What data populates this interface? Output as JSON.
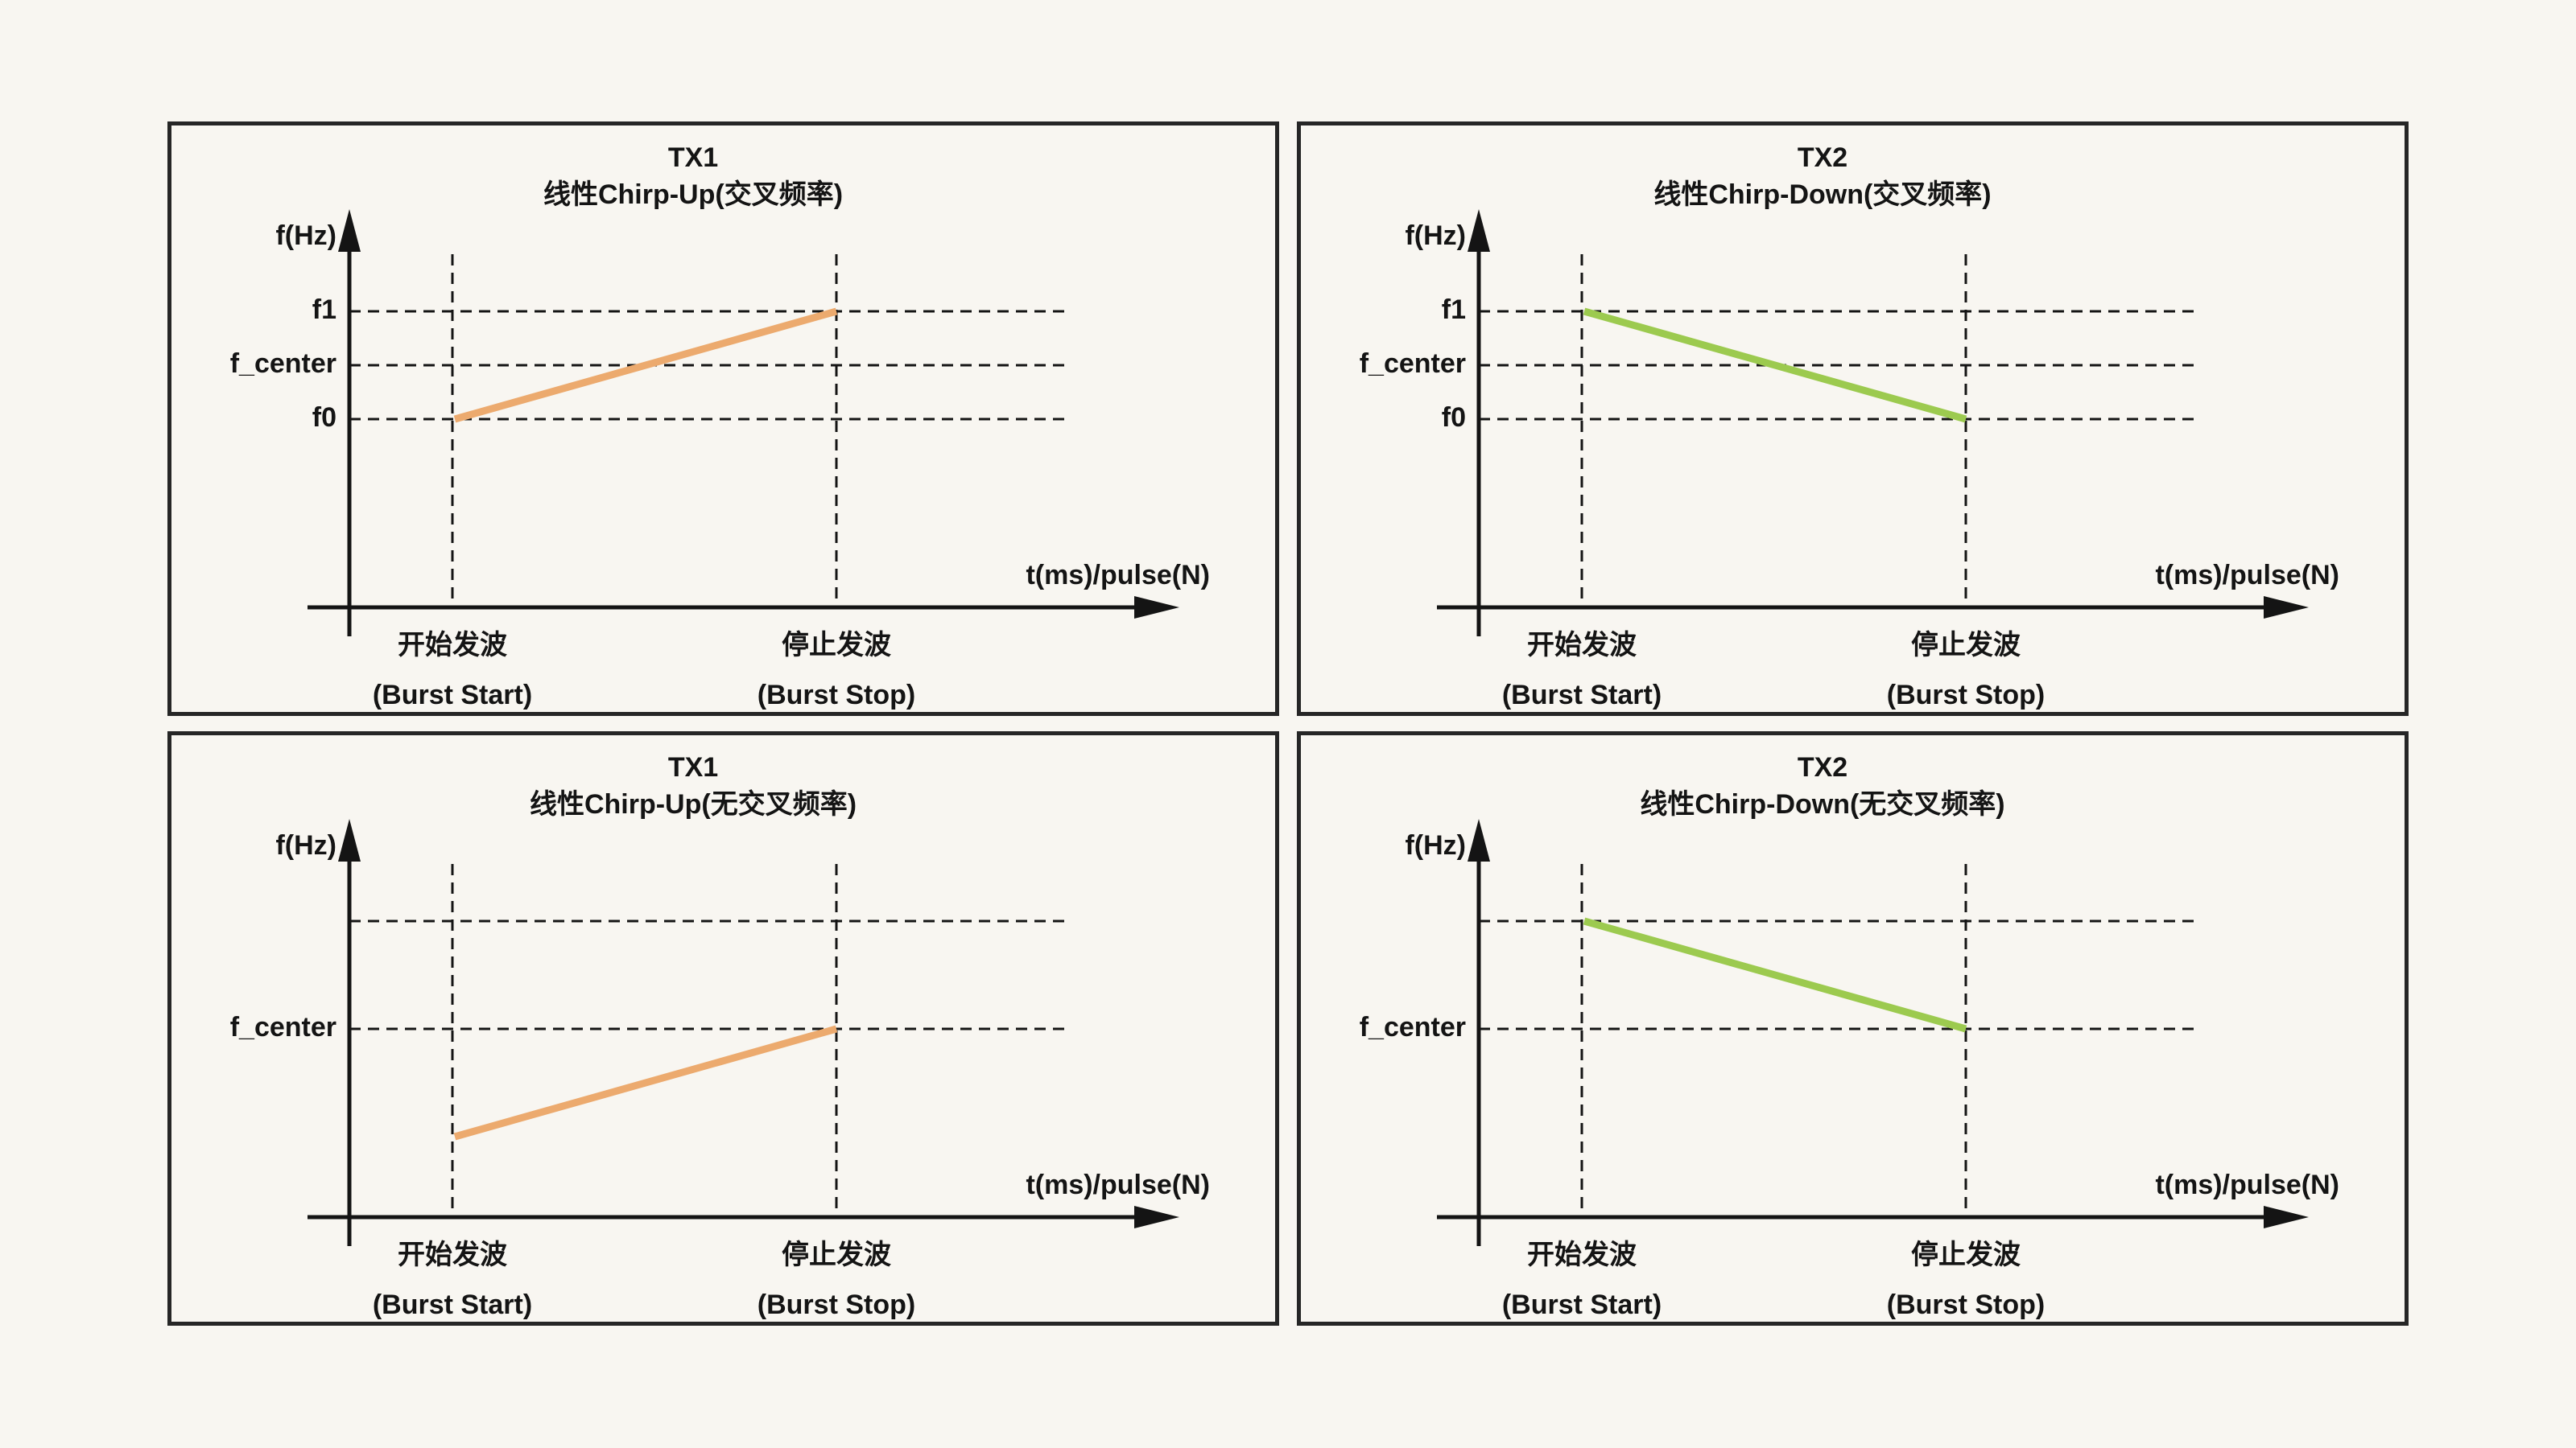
{
  "page": {
    "background": "#F8F6F1",
    "panel_border": "#262626"
  },
  "colors": {
    "tx1_orange": "#ECAA6E",
    "tx2_green": "#9CCA4F",
    "ink": "#141414"
  },
  "panels": [
    {
      "id": "tx1-chirp-up-crossed",
      "title_line1": "TX1",
      "title_line2": "线性Chirp-Up(交叉频率)",
      "accent": "#ECAA6E",
      "y_axis_label": "f(Hz)",
      "x_axis_label": "t(ms)/pulse(N)",
      "burst_start_zh": "开始发波",
      "burst_start_en": "(Burst Start)",
      "burst_stop_zh": "停止发波",
      "burst_stop_en": "(Burst Stop)",
      "hlines": [
        {
          "label": "f1",
          "level": 4
        },
        {
          "label": "f_center",
          "level": 3
        },
        {
          "label": "f0",
          "level": 2
        }
      ],
      "chirp": {
        "from_level": 2,
        "to_level": 4
      }
    },
    {
      "id": "tx2-chirp-down-crossed",
      "title_line1": "TX2",
      "title_line2": "线性Chirp-Down(交叉频率)",
      "accent": "#9CCA4F",
      "y_axis_label": "f(Hz)",
      "x_axis_label": "t(ms)/pulse(N)",
      "burst_start_zh": "开始发波",
      "burst_start_en": "(Burst Start)",
      "burst_stop_zh": "停止发波",
      "burst_stop_en": "(Burst Stop)",
      "hlines": [
        {
          "label": "f1",
          "level": 4
        },
        {
          "label": "f_center",
          "level": 3
        },
        {
          "label": "f0",
          "level": 2
        }
      ],
      "chirp": {
        "from_level": 4,
        "to_level": 2
      }
    },
    {
      "id": "tx1-chirp-up-noncrossed",
      "title_line1": "TX1",
      "title_line2": "线性Chirp-Up(无交叉频率)",
      "accent": "#ECAA6E",
      "y_axis_label": "f(Hz)",
      "x_axis_label": "t(ms)/pulse(N)",
      "burst_start_zh": "开始发波",
      "burst_start_en": "(Burst Start)",
      "burst_stop_zh": "停止发波",
      "burst_stop_en": "(Burst Stop)",
      "hlines": [
        {
          "label": "",
          "level": 4
        },
        {
          "label": "f_center",
          "level": 2
        }
      ],
      "chirp": {
        "from_level": 0,
        "to_level": 2
      }
    },
    {
      "id": "tx2-chirp-down-noncrossed",
      "title_line1": "TX2",
      "title_line2": "线性Chirp-Down(无交叉频率)",
      "accent": "#9CCA4F",
      "y_axis_label": "f(Hz)",
      "x_axis_label": "t(ms)/pulse(N)",
      "burst_start_zh": "开始发波",
      "burst_start_en": "(Burst Start)",
      "burst_stop_zh": "停止发波",
      "burst_stop_en": "(Burst Stop)",
      "hlines": [
        {
          "label": "",
          "level": 4
        },
        {
          "label": "f_center",
          "level": 2
        }
      ],
      "chirp": {
        "from_level": 4,
        "to_level": 2
      }
    }
  ],
  "chart_data": [
    {
      "type": "line",
      "title": "TX1 线性Chirp-Up(交叉频率)",
      "xlabel": "t(ms)/pulse(N)",
      "ylabel": "f(Hz)",
      "x_categories": [
        "开始发波 (Burst Start)",
        "停止发波 (Burst Stop)"
      ],
      "y_gridlines": [
        "f1",
        "f_center",
        "f0"
      ],
      "grid": "dashed",
      "legend": "none",
      "series": [
        {
          "name": "TX1",
          "color": "#ECAA6E",
          "points": [
            {
              "x": "Burst Start",
              "y": "f0"
            },
            {
              "x": "Burst Stop",
              "y": "f1"
            }
          ]
        }
      ]
    },
    {
      "type": "line",
      "title": "TX2 线性Chirp-Down(交叉频率)",
      "xlabel": "t(ms)/pulse(N)",
      "ylabel": "f(Hz)",
      "x_categories": [
        "开始发波 (Burst Start)",
        "停止发波 (Burst Stop)"
      ],
      "y_gridlines": [
        "f1",
        "f_center",
        "f0"
      ],
      "grid": "dashed",
      "legend": "none",
      "series": [
        {
          "name": "TX2",
          "color": "#9CCA4F",
          "points": [
            {
              "x": "Burst Start",
              "y": "f1"
            },
            {
              "x": "Burst Stop",
              "y": "f0"
            }
          ]
        }
      ]
    },
    {
      "type": "line",
      "title": "TX1 线性Chirp-Up(无交叉频率)",
      "xlabel": "t(ms)/pulse(N)",
      "ylabel": "f(Hz)",
      "x_categories": [
        "开始发波 (Burst Start)",
        "停止发波 (Burst Stop)"
      ],
      "y_gridlines": [
        "f_center+Δf (unlabeled)",
        "f_center"
      ],
      "grid": "dashed",
      "legend": "none",
      "series": [
        {
          "name": "TX1",
          "color": "#ECAA6E",
          "points": [
            {
              "x": "Burst Start",
              "y": "f_center−Δf"
            },
            {
              "x": "Burst Stop",
              "y": "f_center"
            }
          ]
        }
      ]
    },
    {
      "type": "line",
      "title": "TX2 线性Chirp-Down(无交叉频率)",
      "xlabel": "t(ms)/pulse(N)",
      "ylabel": "f(Hz)",
      "x_categories": [
        "开始发波 (Burst Start)",
        "停止发波 (Burst Stop)"
      ],
      "y_gridlines": [
        "f_center+Δf (unlabeled)",
        "f_center"
      ],
      "grid": "dashed",
      "legend": "none",
      "series": [
        {
          "name": "TX2",
          "color": "#9CCA4F",
          "points": [
            {
              "x": "Burst Start",
              "y": "f_center+Δf"
            },
            {
              "x": "Burst Stop",
              "y": "f_center"
            }
          ]
        }
      ]
    }
  ]
}
